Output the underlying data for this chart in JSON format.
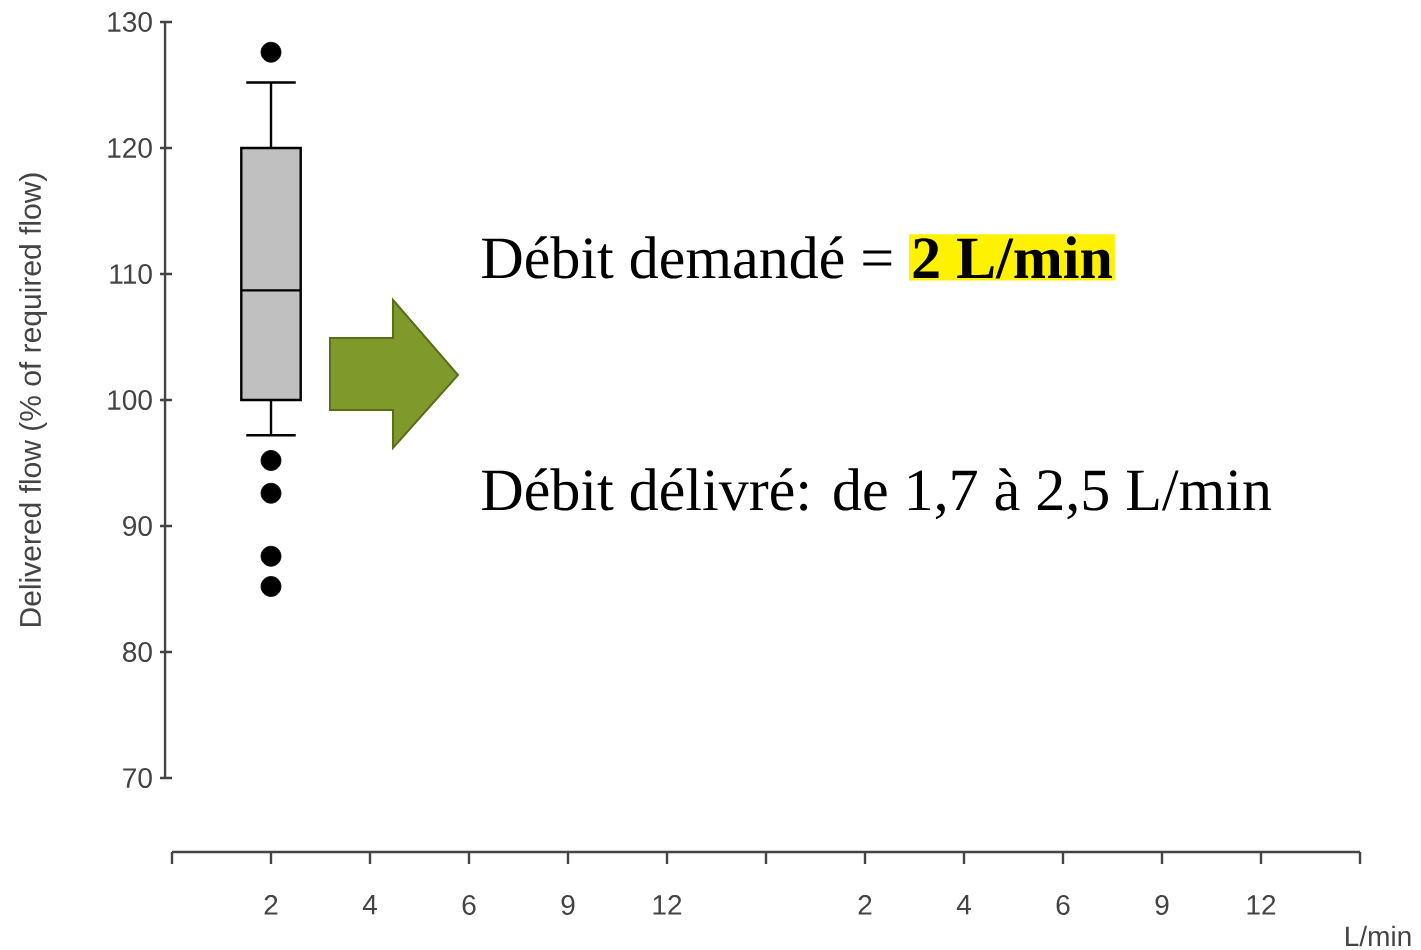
{
  "chart_data": {
    "type": "box",
    "ylabel": "Delivered flow (% of required flow)",
    "xlabel": "L/min",
    "categories": [
      "2",
      "4",
      "6",
      "9",
      "12",
      null,
      "2",
      "4",
      "6",
      "9",
      "12"
    ],
    "color": "#c0c0c0",
    "boxes": [
      {
        "low": 97.2,
        "q1": 100,
        "median": 108.7,
        "q3": 120,
        "high": 125.2,
        "outliers": [
          127.6,
          95.2,
          92.6,
          87.6,
          85.2
        ]
      },
      null,
      null,
      null,
      null,
      null,
      null,
      null,
      null,
      null,
      null
    ],
    "ylim": [
      70,
      130
    ],
    "yticks": [
      70,
      80,
      90,
      100,
      110,
      120,
      130
    ],
    "annotations": [
      "Débit demandé =",
      "2 L/min",
      "Débit délivré: de 1,7 à 2,5 L/min"
    ]
  }
}
